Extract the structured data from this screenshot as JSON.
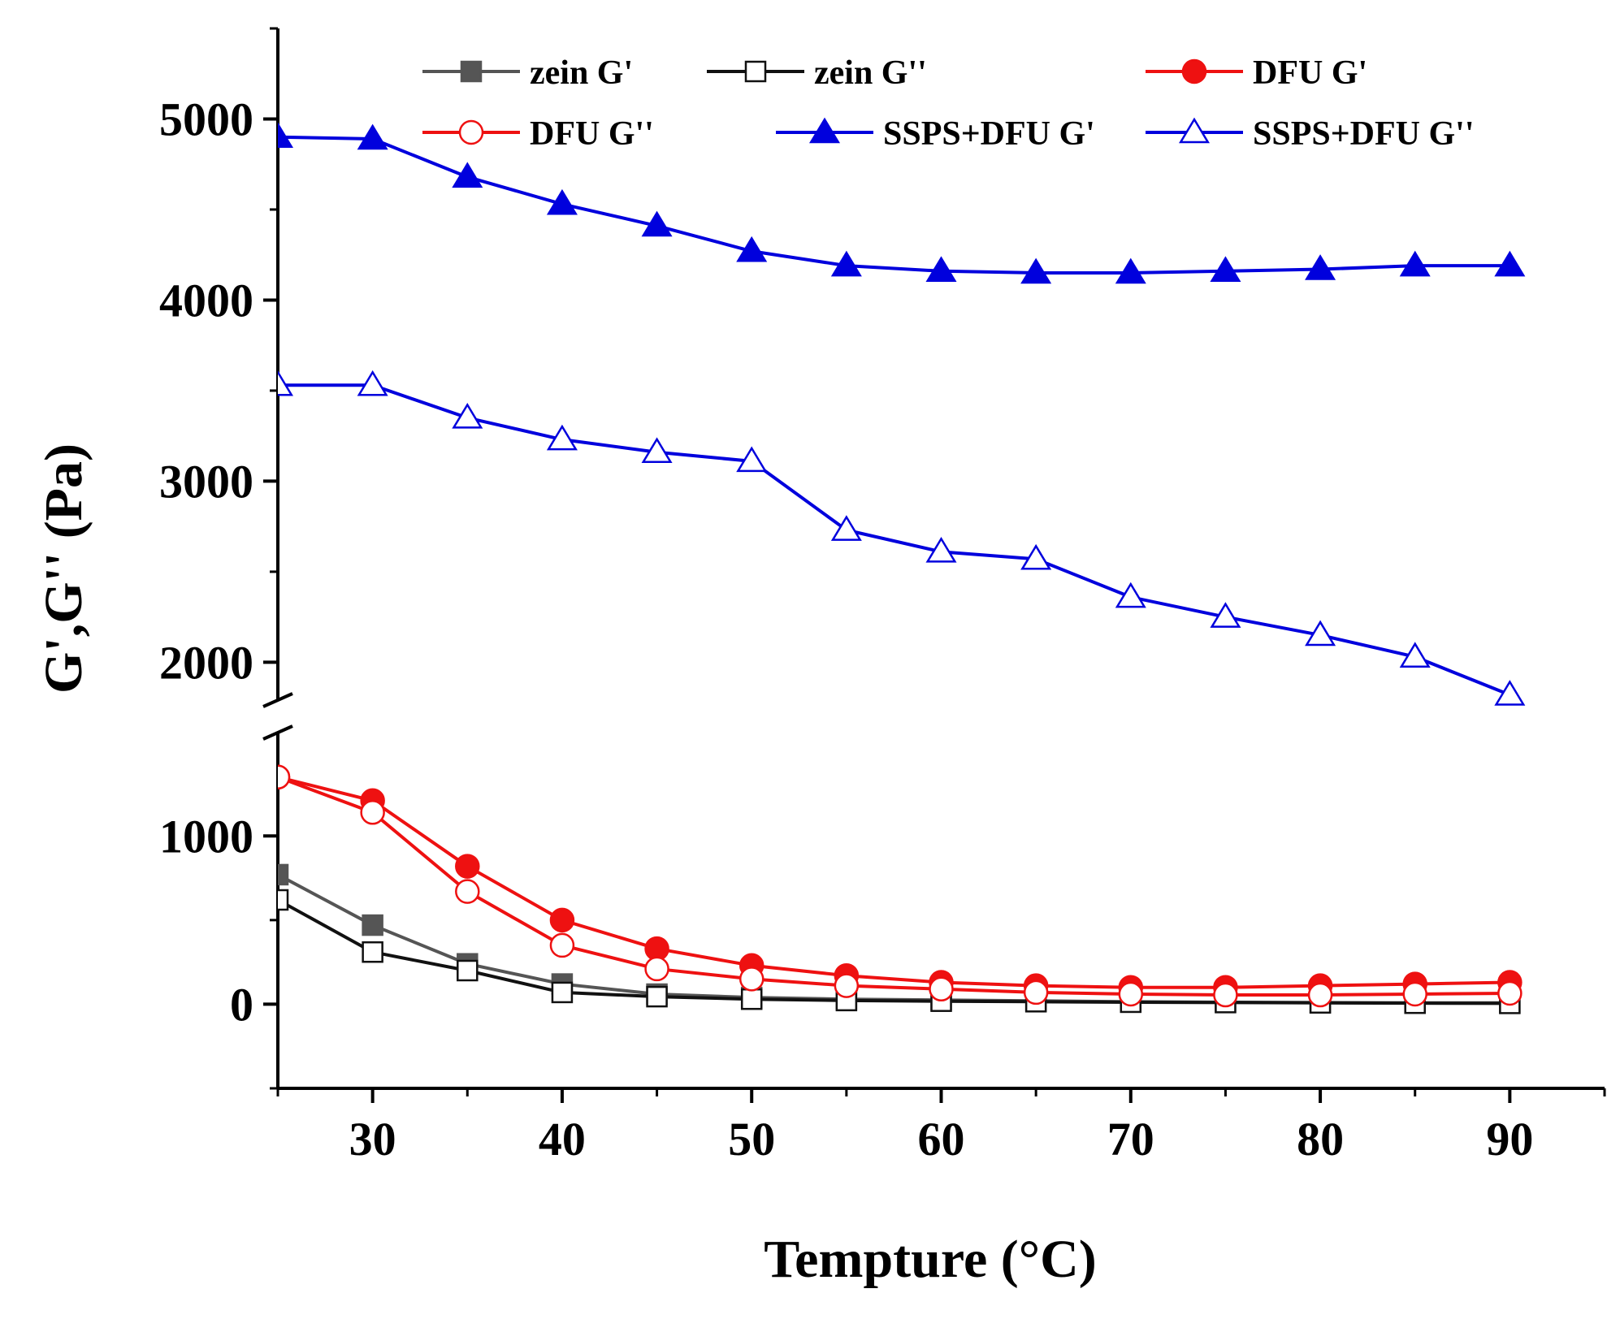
{
  "chart_data": {
    "type": "line",
    "title": "",
    "xlabel": "Tempture (°C)",
    "ylabel": "G',G'' (Pa)",
    "xlim": [
      25,
      95
    ],
    "x_ticks": [
      30,
      40,
      50,
      60,
      70,
      80,
      90
    ],
    "y_axis_break": true,
    "y_lower_segment": {
      "range": [
        -500,
        1600
      ],
      "ticks": [
        0,
        1000
      ]
    },
    "y_upper_segment": {
      "range": [
        1800,
        5500
      ],
      "ticks": [
        2000,
        3000,
        4000,
        5000
      ]
    },
    "x": [
      25,
      30,
      35,
      40,
      45,
      50,
      55,
      60,
      65,
      70,
      75,
      80,
      85,
      90
    ],
    "series": [
      {
        "name": "zein G'",
        "color": "#555555",
        "marker": "square-filled",
        "values": [
          770,
          470,
          240,
          120,
          60,
          40,
          30,
          25,
          20,
          15,
          12,
          10,
          8,
          8
        ]
      },
      {
        "name": "zein G''",
        "color": "#111111",
        "marker": "square-open",
        "values": [
          620,
          310,
          200,
          70,
          45,
          30,
          22,
          18,
          15,
          12,
          10,
          8,
          6,
          5
        ]
      },
      {
        "name": "DFU G'",
        "color": "#ee1111",
        "marker": "circle-filled",
        "values": [
          1350,
          1210,
          820,
          500,
          330,
          230,
          170,
          130,
          110,
          100,
          100,
          110,
          120,
          130
        ]
      },
      {
        "name": "DFU G''",
        "color": "#ee1111",
        "marker": "circle-open",
        "values": [
          1350,
          1140,
          670,
          350,
          210,
          150,
          110,
          90,
          70,
          60,
          55,
          55,
          60,
          65
        ]
      },
      {
        "name": "SSPS+DFU G'",
        "color": "#0000dd",
        "marker": "triangle-filled",
        "values": [
          4900,
          4890,
          4680,
          4530,
          4410,
          4270,
          4190,
          4160,
          4150,
          4150,
          4160,
          4170,
          4190,
          4190
        ]
      },
      {
        "name": "SSPS+DFU G''",
        "color": "#0000dd",
        "marker": "triangle-open",
        "values": [
          3530,
          3530,
          3350,
          3230,
          3160,
          3110,
          2730,
          2610,
          2570,
          2360,
          2250,
          2150,
          2030,
          1820
        ]
      }
    ],
    "legend_position": "top"
  }
}
